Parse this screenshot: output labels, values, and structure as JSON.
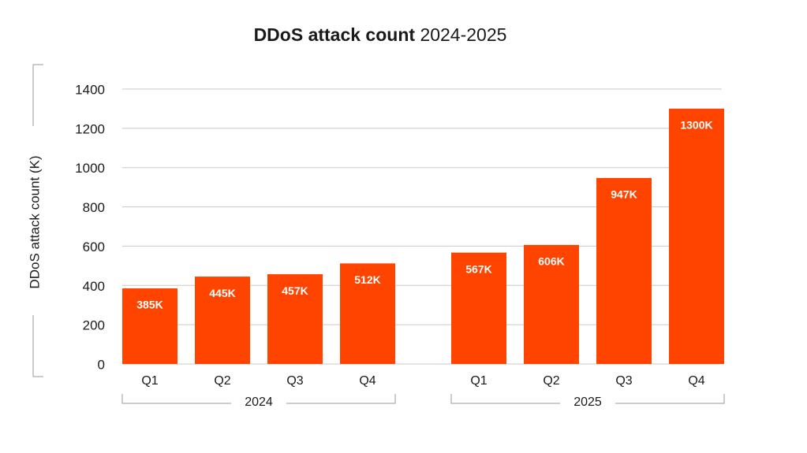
{
  "chart_data": {
    "type": "bar",
    "title_bold": "DDoS attack count",
    "title_rest": "2024-2025",
    "y_label": "DDoS attack count (K)",
    "color": "#ff4400",
    "ylim": [
      0,
      1400
    ],
    "yticks": [
      0,
      200,
      400,
      600,
      800,
      1000,
      1200,
      1400
    ],
    "grid": true,
    "groups": [
      {
        "label": "2024",
        "categories": [
          "Q1",
          "Q2",
          "Q3",
          "Q4"
        ],
        "values": [
          385,
          445,
          457,
          512
        ],
        "value_labels": [
          "385K",
          "445K",
          "457K",
          "512K"
        ]
      },
      {
        "label": "2025",
        "categories": [
          "Q1",
          "Q2",
          "Q3",
          "Q4"
        ],
        "values": [
          567,
          606,
          947,
          1300
        ],
        "value_labels": [
          "567K",
          "606K",
          "947K",
          "1300K"
        ]
      }
    ]
  }
}
